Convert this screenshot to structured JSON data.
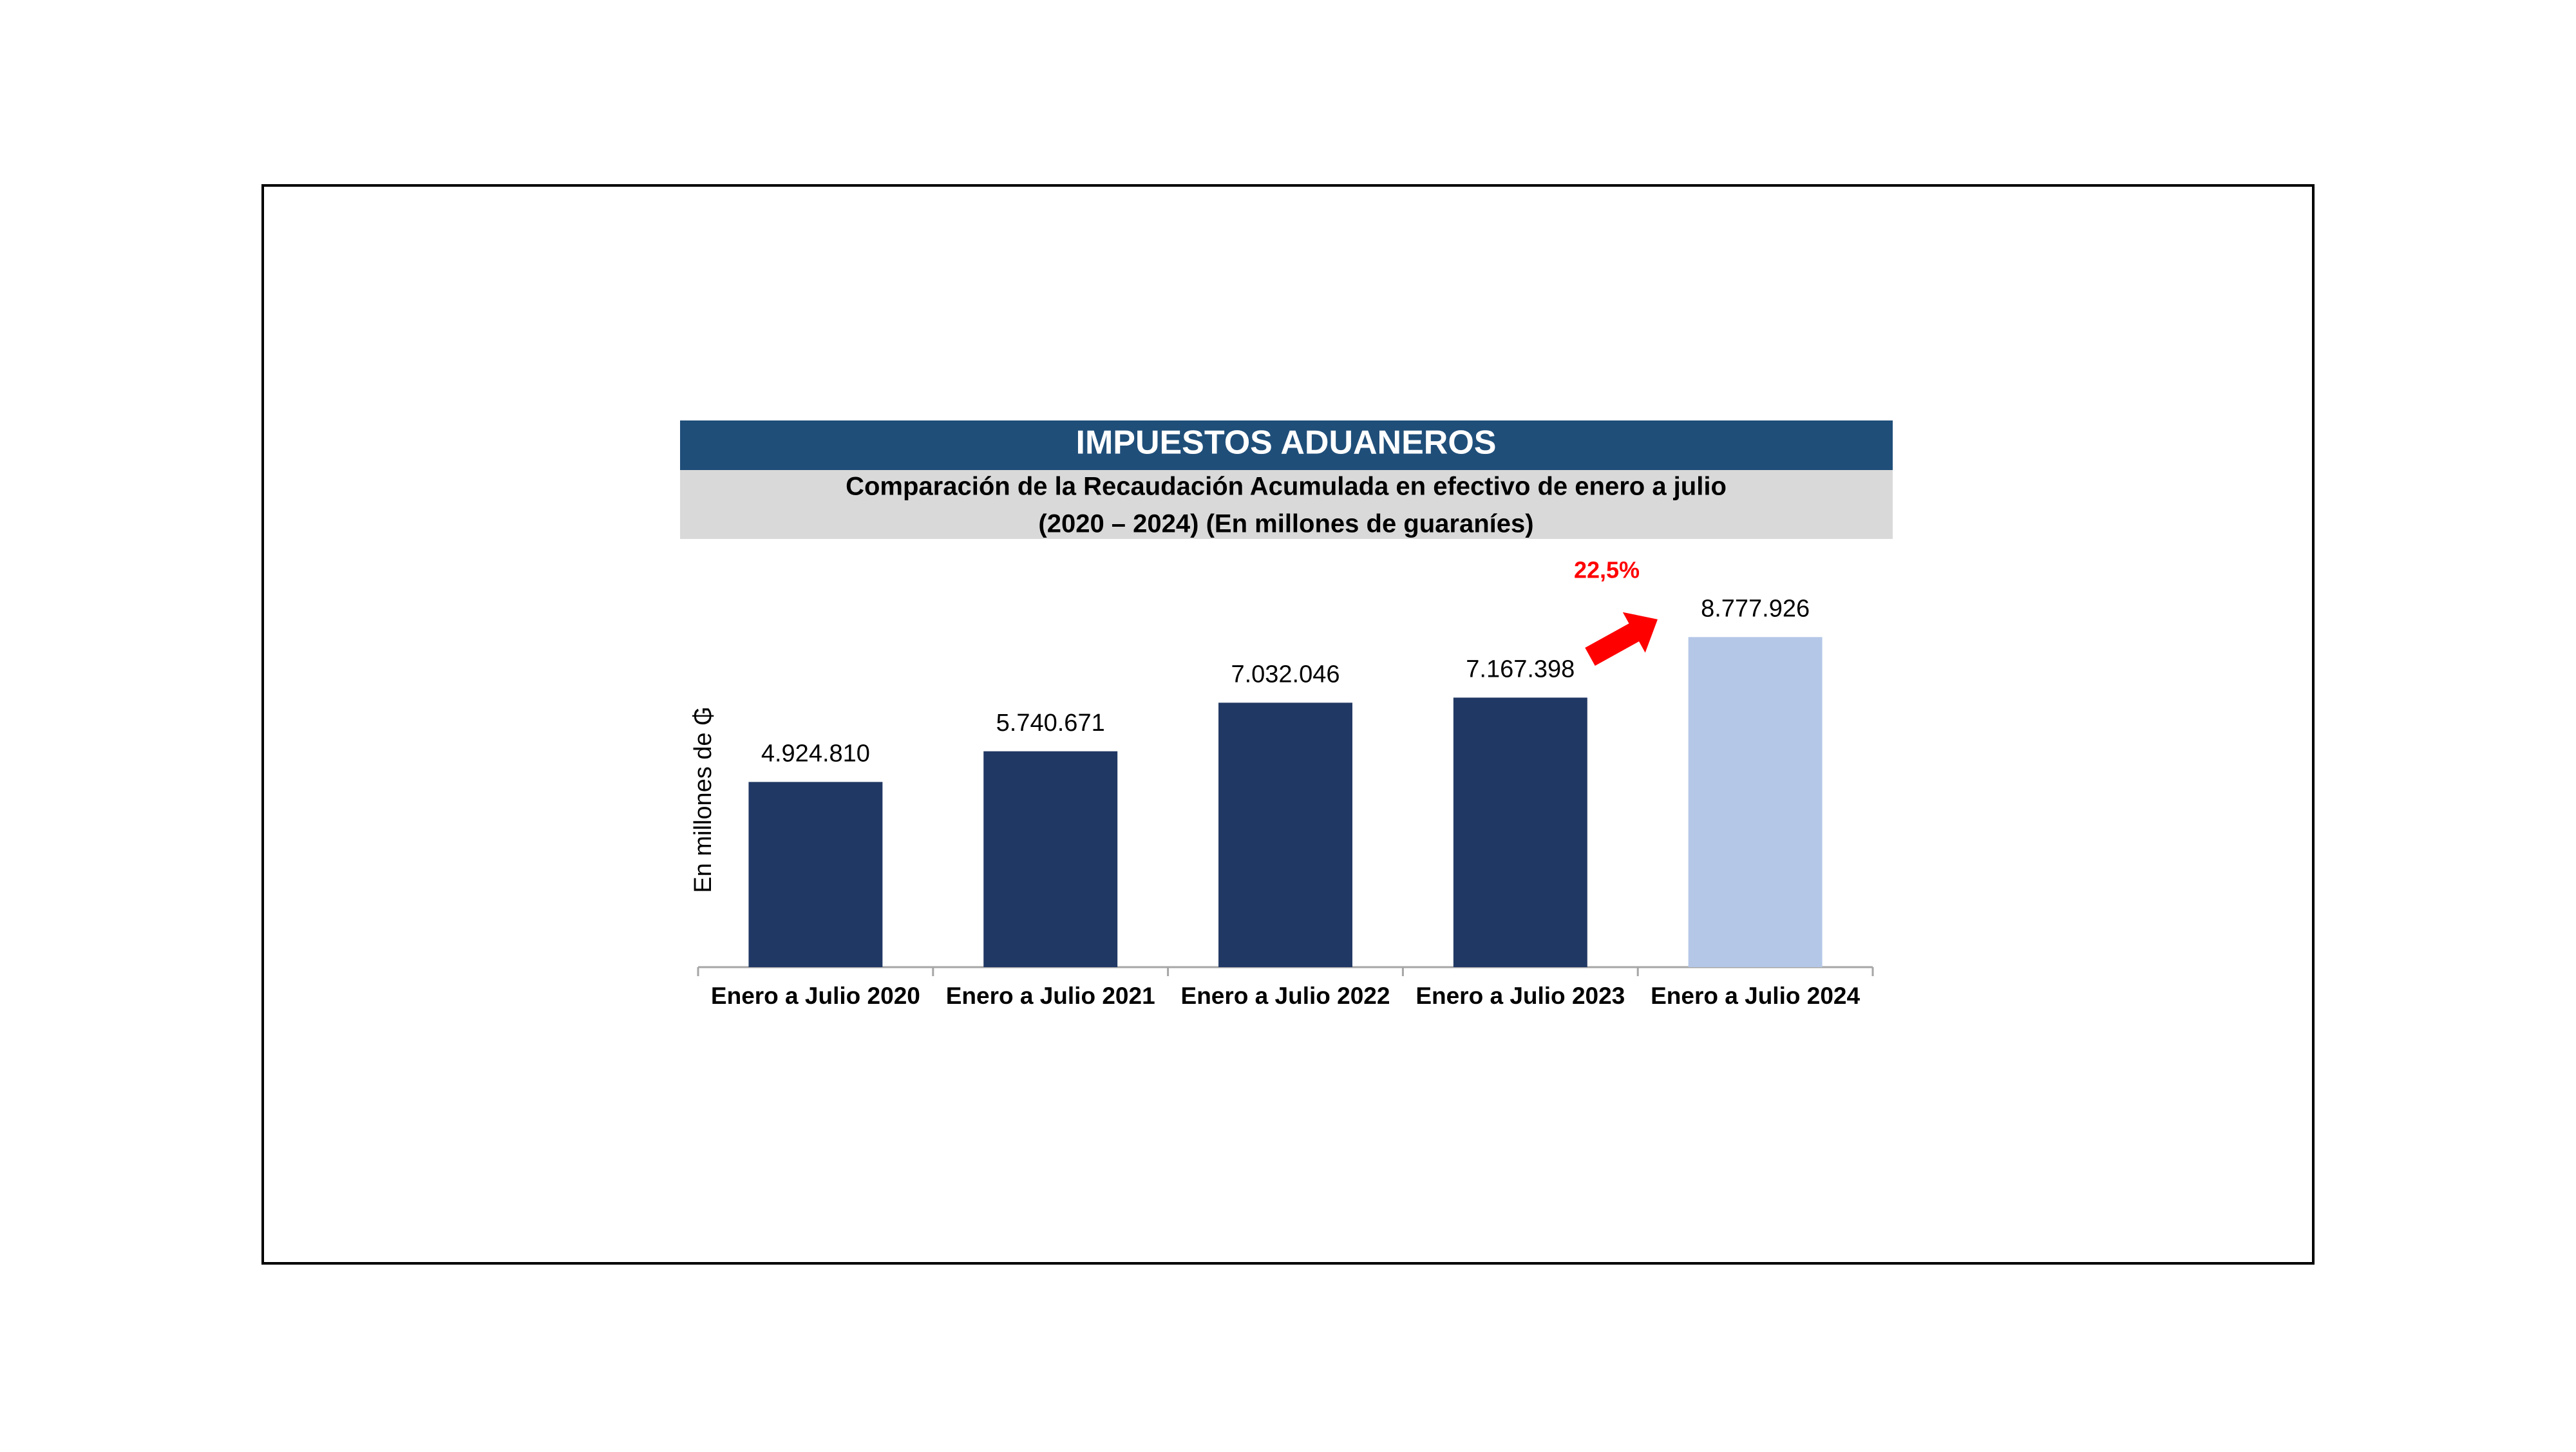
{
  "chart_data": {
    "type": "bar",
    "title": "IMPUESTOS ADUANEROS",
    "subtitle": [
      "Comparación de la Recaudación Acumulada en efectivo de enero a julio",
      "(2020 – 2024) (En millones de guaraníes)"
    ],
    "y_label": "En millones de ₲",
    "annotation": "22,5%",
    "categories": [
      "Enero a Julio 2020",
      "Enero a Julio 2021",
      "Enero a Julio 2022",
      "Enero a Julio 2023",
      "Enero a Julio 2024"
    ],
    "values": [
      4924810,
      5740671,
      7032046,
      7167398,
      8777926
    ],
    "value_labels": [
      "4.924.810",
      "5.740.671",
      "7.032.046",
      "7.167.398",
      "8.777.926"
    ],
    "colors": [
      "#203864",
      "#203864",
      "#203864",
      "#203864",
      "#b4c7e7"
    ],
    "ylim": [
      0,
      10000000
    ],
    "grid": false
  }
}
